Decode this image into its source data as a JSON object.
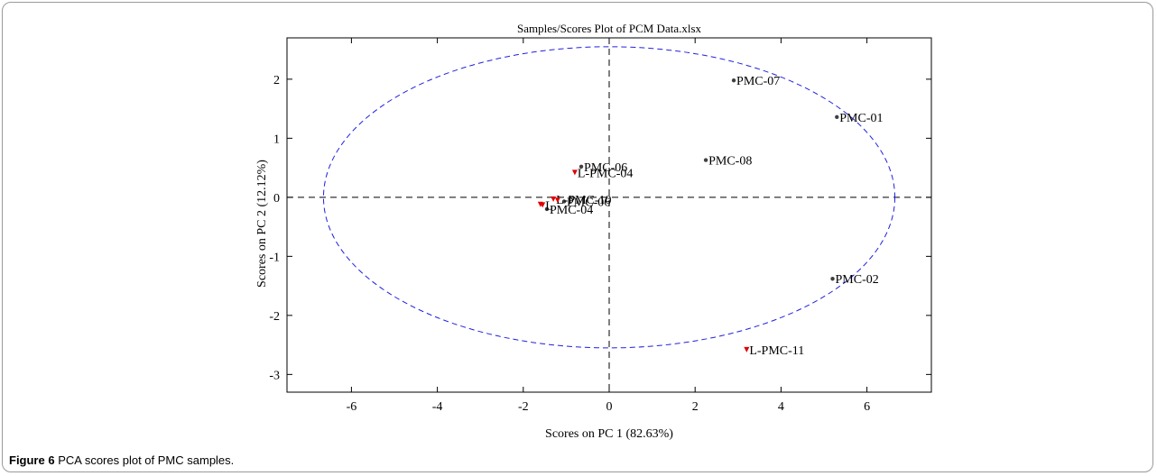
{
  "colors": {
    "ellipse": "#2020e0",
    "sample": "#404040",
    "leaf_sample": "#e00000",
    "axis": "#000000"
  },
  "figure": {
    "label": "Figure 6",
    "caption": "PCA scores plot of PMC samples."
  },
  "chart_data": {
    "type": "scatter",
    "title": "Samples/Scores Plot of PCM Data.xlsx",
    "xlabel": "Scores on PC 1 (82.63%)",
    "ylabel": "Scores on PC 2 (12.12%)",
    "xlim": [
      -7.5,
      7.5
    ],
    "ylim": [
      -3.3,
      2.7
    ],
    "xticks": [
      -6,
      -4,
      -2,
      0,
      2,
      4,
      6
    ],
    "yticks": [
      -3,
      -2,
      -1,
      0,
      1,
      2
    ],
    "grid": false,
    "confidence_ellipse": {
      "center": [
        0,
        0
      ],
      "semi_x": 6.65,
      "semi_y": 2.55
    },
    "series": [
      {
        "marker": "dot",
        "points": [
          {
            "x": 2.9,
            "y": 1.98,
            "label": "PMC-07"
          },
          {
            "x": 5.3,
            "y": 1.36,
            "label": "PMC-01"
          },
          {
            "x": 2.25,
            "y": 0.63,
            "label": "PMC-08"
          },
          {
            "x": -0.65,
            "y": 0.52,
            "label": "PMC-06"
          },
          {
            "x": -1.05,
            "y": -0.07,
            "label": "PMC-06"
          },
          {
            "x": -1.45,
            "y": -0.2,
            "label": "PMC-04"
          },
          {
            "x": 5.2,
            "y": -1.38,
            "label": "PMC-02"
          }
        ]
      },
      {
        "marker": "triangle",
        "points": [
          {
            "x": -0.8,
            "y": 0.42,
            "label": "L-PMC-04"
          },
          {
            "x": -1.3,
            "y": -0.03,
            "label": "L-PMC-10"
          },
          {
            "x": -1.55,
            "y": -0.13,
            "label": "L"
          },
          {
            "x": -1.6,
            "y": -0.12,
            "label": ""
          },
          {
            "x": -1.2,
            "y": -0.05,
            "label": ""
          },
          {
            "x": 3.2,
            "y": -2.58,
            "label": "L-PMC-11"
          }
        ]
      }
    ]
  }
}
